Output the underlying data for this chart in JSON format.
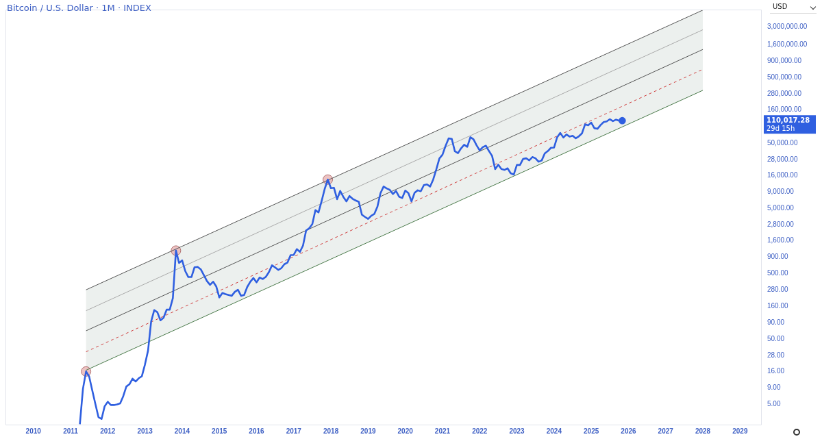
{
  "chart_data": {
    "type": "line",
    "title": "Bitcoin / U.S. Dollar · 1M · INDEX",
    "log": "y",
    "grid": false,
    "legend": false,
    "xlim": [
      "2009-04",
      "2029-08"
    ],
    "xticks": [
      "2010",
      "2011",
      "2012",
      "2013",
      "2014",
      "2015",
      "2016",
      "2017",
      "2018",
      "2019",
      "2020",
      "2021",
      "2022",
      "2023",
      "2024",
      "2025",
      "2026",
      "2027",
      "2028",
      "2029"
    ],
    "ylim": [
      2.4,
      5500000
    ],
    "yticks": [
      {
        "value": 5,
        "label": "5.00"
      },
      {
        "value": 9,
        "label": "9.00"
      },
      {
        "value": 16,
        "label": "16.00"
      },
      {
        "value": 28,
        "label": "28.00"
      },
      {
        "value": 50,
        "label": "50.00"
      },
      {
        "value": 90,
        "label": "90.00"
      },
      {
        "value": 160,
        "label": "160.00"
      },
      {
        "value": 280,
        "label": "280.00"
      },
      {
        "value": 500,
        "label": "500.00"
      },
      {
        "value": 900,
        "label": "900.00"
      },
      {
        "value": 1600,
        "label": "1,600.00"
      },
      {
        "value": 2800,
        "label": "2,800.00"
      },
      {
        "value": 5000,
        "label": "5,000.00"
      },
      {
        "value": 9000,
        "label": "9,000.00"
      },
      {
        "value": 16000,
        "label": "16,000.00"
      },
      {
        "value": 28000,
        "label": "28,000.00"
      },
      {
        "value": 50000,
        "label": "50,000.00"
      },
      {
        "value": 160000,
        "label": "160,000.00"
      },
      {
        "value": 280000,
        "label": "280,000.00"
      },
      {
        "value": 500000,
        "label": "500,000.00"
      },
      {
        "value": 900000,
        "label": "900,000.00"
      },
      {
        "value": 1600000,
        "label": "1,600,000.00"
      },
      {
        "value": 3000000,
        "label": "3,000,000.00"
      }
    ],
    "annotations": [
      "USD",
      "110,017.28",
      "29d 15h"
    ],
    "series": [
      {
        "color": "#555555",
        "x": [
          "2011-06",
          "2028-01"
        ],
        "values": [
          284,
          5400000
        ]
      },
      {
        "color": "#aaaaaa",
        "x": [
          "2011-06",
          "2028-01"
        ],
        "values": [
          136,
          2700000
        ]
      },
      {
        "color": "#555555",
        "x": [
          "2011-06",
          "2028-01"
        ],
        "values": [
          67,
          1350000
        ]
      },
      {
        "color": "#d04040",
        "line_style": "dashed",
        "x": [
          "2011-06",
          "2028-01"
        ],
        "values": [
          32,
          670000
        ],
        "lower": [
          16.7,
          320000
        ],
        "upper": [
          284,
          5400000
        ]
      },
      {
        "color": "#4a7a4a",
        "x": [
          "2011-06",
          "2028-01"
        ],
        "values": [
          16.7,
          320000
        ]
      },
      {
        "color": "#2f5fe0",
        "x": [
          "2011-04",
          "2011-05",
          "2011-06",
          "2011-07",
          "2011-08",
          "2011-09",
          "2011-10",
          "2011-11",
          "2011-12",
          "2012-01",
          "2012-02",
          "2012-03",
          "2012-04",
          "2012-05",
          "2012-06",
          "2012-07",
          "2012-08",
          "2012-09",
          "2012-10",
          "2012-11",
          "2012-12",
          "2013-01",
          "2013-02",
          "2013-03",
          "2013-04",
          "2013-05",
          "2013-06",
          "2013-07",
          "2013-08",
          "2013-09",
          "2013-10",
          "2013-11",
          "2013-12",
          "2014-01",
          "2014-02",
          "2014-03",
          "2014-04",
          "2014-05",
          "2014-06",
          "2014-07",
          "2014-08",
          "2014-09",
          "2014-10",
          "2014-11",
          "2014-12",
          "2015-01",
          "2015-02",
          "2015-03",
          "2015-04",
          "2015-05",
          "2015-06",
          "2015-07",
          "2015-08",
          "2015-09",
          "2015-10",
          "2015-11",
          "2015-12",
          "2016-01",
          "2016-02",
          "2016-03",
          "2016-04",
          "2016-05",
          "2016-06",
          "2016-07",
          "2016-08",
          "2016-09",
          "2016-10",
          "2016-11",
          "2016-12",
          "2017-01",
          "2017-02",
          "2017-03",
          "2017-04",
          "2017-05",
          "2017-06",
          "2017-07",
          "2017-08",
          "2017-09",
          "2017-10",
          "2017-11",
          "2017-12",
          "2018-01",
          "2018-02",
          "2018-03",
          "2018-04",
          "2018-05",
          "2018-06",
          "2018-07",
          "2018-08",
          "2018-09",
          "2018-10",
          "2018-11",
          "2018-12",
          "2019-01",
          "2019-02",
          "2019-03",
          "2019-04",
          "2019-05",
          "2019-06",
          "2019-07",
          "2019-08",
          "2019-09",
          "2019-10",
          "2019-11",
          "2019-12",
          "2020-01",
          "2020-02",
          "2020-03",
          "2020-04",
          "2020-05",
          "2020-06",
          "2020-07",
          "2020-08",
          "2020-09",
          "2020-10",
          "2020-11",
          "2020-12",
          "2021-01",
          "2021-02",
          "2021-03",
          "2021-04",
          "2021-05",
          "2021-06",
          "2021-07",
          "2021-08",
          "2021-09",
          "2021-10",
          "2021-11",
          "2021-12",
          "2022-01",
          "2022-02",
          "2022-03",
          "2022-04",
          "2022-05",
          "2022-06",
          "2022-07",
          "2022-08",
          "2022-09",
          "2022-10",
          "2022-11",
          "2022-12",
          "2023-01",
          "2023-02",
          "2023-03",
          "2023-04",
          "2023-05",
          "2023-06",
          "2023-07",
          "2023-08",
          "2023-09",
          "2023-10",
          "2023-11",
          "2023-12",
          "2024-01",
          "2024-02",
          "2024-03",
          "2024-04",
          "2024-05",
          "2024-06",
          "2024-07",
          "2024-08",
          "2024-09",
          "2024-10",
          "2024-11",
          "2024-12",
          "2025-01",
          "2025-02",
          "2025-03",
          "2025-04",
          "2025-05",
          "2025-06",
          "2025-07",
          "2025-08",
          "2025-09",
          "2025-10",
          "2025-11"
        ],
        "values": [
          2.5,
          8.7,
          16,
          13.4,
          8.2,
          5.1,
          3.2,
          3,
          4.7,
          5.5,
          4.9,
          4.9,
          5,
          5.2,
          6.7,
          9.4,
          10.2,
          12.4,
          11.2,
          12.6,
          13.5,
          20.4,
          33.4,
          93,
          139,
          129,
          97,
          106,
          141,
          141,
          211,
          1130,
          732,
          800,
          550,
          445,
          445,
          628,
          637,
          585,
          478,
          386,
          338,
          378,
          320,
          217,
          254,
          244,
          236,
          230,
          264,
          284,
          230,
          236,
          314,
          377,
          430,
          369,
          437,
          416,
          448,
          531,
          673,
          624,
          573,
          609,
          700,
          742,
          964,
          970,
          1190,
          1080,
          1350,
          2300,
          2480,
          2875,
          4700,
          4340,
          6470,
          9950,
          13800,
          10200,
          10300,
          6900,
          9250,
          7500,
          6400,
          7730,
          7000,
          6600,
          6300,
          4000,
          3700,
          3450,
          3850,
          4100,
          5300,
          8550,
          10800,
          10100,
          9600,
          8300,
          9200,
          7550,
          7200,
          9350,
          8550,
          6400,
          8650,
          9450,
          9140,
          11350,
          11650,
          10780,
          13800,
          19700,
          29000,
          33100,
          45200,
          58900,
          57700,
          37300,
          35000,
          41500,
          47100,
          43800,
          61300,
          57000,
          46200,
          38500,
          43200,
          45500,
          37700,
          31800,
          19900,
          23300,
          20000,
          19400,
          20500,
          17200,
          16500,
          23100,
          23100,
          28500,
          29200,
          27200,
          30500,
          29200,
          25900,
          27000,
          34600,
          37700,
          42300,
          42600,
          61200,
          71300,
          60700,
          67500,
          62700,
          64600,
          59000,
          63300,
          70200,
          96400,
          93400,
          102400,
          84400,
          82500,
          94200,
          104600,
          107100,
          115700,
          108200,
          114000,
          109600,
          110017.28
        ]
      },
      {
        "type": "scatter",
        "color": "#e8b4b4",
        "x": [
          "2011-06",
          "2013-11",
          "2017-12"
        ],
        "values": [
          16,
          1130,
          13800
        ]
      }
    ]
  }
}
